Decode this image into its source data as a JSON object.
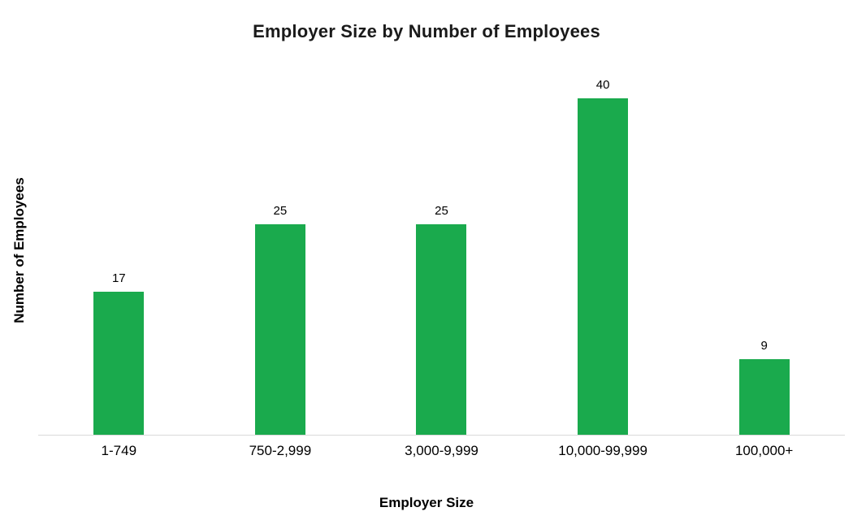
{
  "chart_data": {
    "type": "bar",
    "title": "Employer Size by Number of Employees",
    "xlabel": "Employer Size",
    "ylabel": "Number of Employees",
    "categories": [
      "1-749",
      "750-2,999",
      "3,000-9,999",
      "10,000-99,999",
      "100,000+"
    ],
    "values": [
      17,
      25,
      25,
      40,
      9
    ],
    "ylim": [
      0,
      44
    ],
    "grid": false,
    "legend": "none",
    "data_labels": "above-bars"
  },
  "colors": {
    "bar": "#1aaa4d",
    "axis_line": "#d9d9d9",
    "text": "#000000",
    "background": "#ffffff"
  }
}
